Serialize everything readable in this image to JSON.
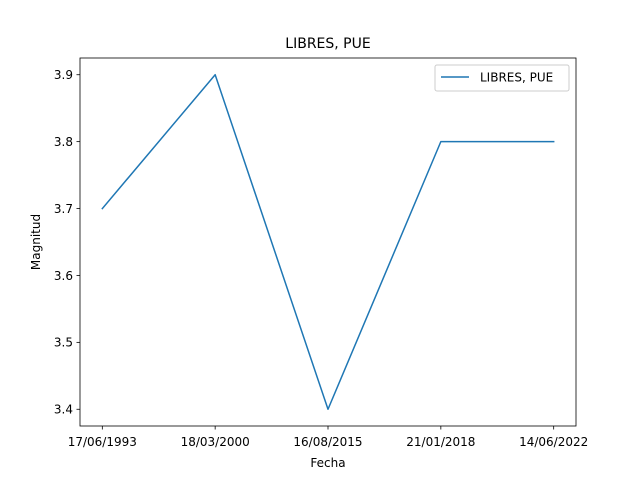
{
  "chart_data": {
    "type": "line",
    "title": "LIBRES, PUE",
    "xlabel": "Fecha",
    "ylabel": "Magnitud",
    "categories": [
      "17/06/1993",
      "18/03/2000",
      "16/08/2015",
      "21/01/2018",
      "14/06/2022"
    ],
    "series": [
      {
        "name": "LIBRES, PUE",
        "values": [
          3.7,
          3.9,
          3.4,
          3.8,
          3.8
        ]
      }
    ],
    "yticks": [
      "3.4",
      "3.5",
      "3.6",
      "3.7",
      "3.8",
      "3.9"
    ],
    "ylim": [
      3.375,
      3.925
    ],
    "grid": false,
    "legend_position": "top-right",
    "colors": {
      "series": "#1f77b4",
      "axes": "#000000",
      "legend_border": "#cccccc"
    }
  }
}
